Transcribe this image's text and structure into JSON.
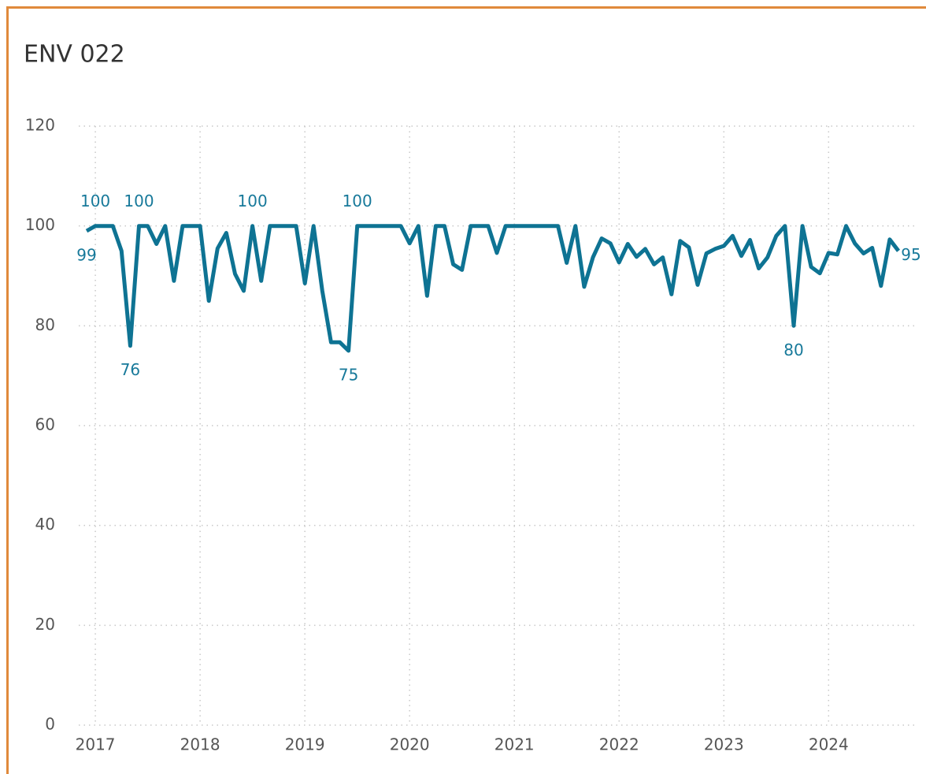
{
  "chart_data": {
    "type": "line",
    "title": "ENV 022",
    "categories": [
      null,
      "2017",
      null,
      null,
      null,
      null,
      null,
      null,
      null,
      null,
      null,
      null,
      null,
      "2018",
      null,
      null,
      null,
      null,
      null,
      null,
      null,
      null,
      null,
      null,
      null,
      "2019",
      null,
      null,
      null,
      null,
      null,
      null,
      null,
      null,
      null,
      null,
      null,
      "2020",
      null,
      null,
      null,
      null,
      null,
      null,
      null,
      null,
      null,
      null,
      null,
      "2021",
      null,
      null,
      null,
      null,
      null,
      null,
      null,
      null,
      null,
      null,
      null,
      "2022",
      null,
      null,
      null,
      null,
      null,
      null,
      null,
      null,
      null,
      null,
      null,
      "2023",
      null,
      null,
      null,
      null,
      null,
      null,
      null,
      null,
      null,
      null,
      null,
      "2024",
      null,
      null,
      null,
      null,
      null,
      null,
      null,
      null
    ],
    "series": [
      {
        "name": "ENV 022",
        "color": "#0e7393",
        "values": [
          99,
          100,
          100,
          100,
          95,
          76,
          100,
          100,
          96.4,
          100,
          89,
          100,
          100,
          100,
          85,
          95.5,
          98.6,
          90.4,
          87,
          100,
          89,
          100,
          100,
          100,
          100,
          88.5,
          100,
          87,
          76.7,
          76.7,
          75,
          100,
          100,
          100,
          100,
          100,
          100,
          96.5,
          100,
          86,
          100,
          100,
          92.3,
          91.2,
          100,
          100,
          100,
          94.6,
          100,
          100,
          100,
          100,
          100,
          100,
          100,
          92.6,
          100,
          87.8,
          93.7,
          97.5,
          96.5,
          92.7,
          96.4,
          93.8,
          95.4,
          92.3,
          93.7,
          86.3,
          97,
          95.7,
          88.2,
          94.5,
          95.4,
          96,
          98,
          94,
          97.2,
          91.5,
          93.7,
          98,
          100,
          80,
          100,
          91.8,
          90.5,
          94.6,
          94.3,
          100,
          96.5,
          94.5,
          95.6,
          88,
          97.3,
          95
        ],
        "value_labels": [
          "99",
          "100",
          null,
          null,
          null,
          "76",
          "100",
          null,
          null,
          null,
          null,
          null,
          null,
          null,
          null,
          null,
          null,
          null,
          null,
          "100",
          null,
          null,
          null,
          null,
          null,
          null,
          null,
          null,
          null,
          null,
          "75",
          "100",
          null,
          null,
          null,
          null,
          null,
          null,
          null,
          null,
          null,
          null,
          null,
          null,
          null,
          null,
          null,
          null,
          null,
          null,
          null,
          null,
          null,
          null,
          null,
          null,
          null,
          null,
          null,
          null,
          null,
          null,
          null,
          null,
          null,
          null,
          null,
          null,
          null,
          null,
          null,
          null,
          null,
          null,
          null,
          null,
          null,
          null,
          null,
          null,
          null,
          "80",
          null,
          null,
          null,
          null,
          null,
          null,
          null,
          null,
          null,
          null,
          null,
          "95"
        ]
      }
    ],
    "ylim": [
      0,
      120
    ],
    "yticks": [
      0,
      20,
      40,
      60,
      80,
      100,
      120
    ],
    "grid": true
  }
}
